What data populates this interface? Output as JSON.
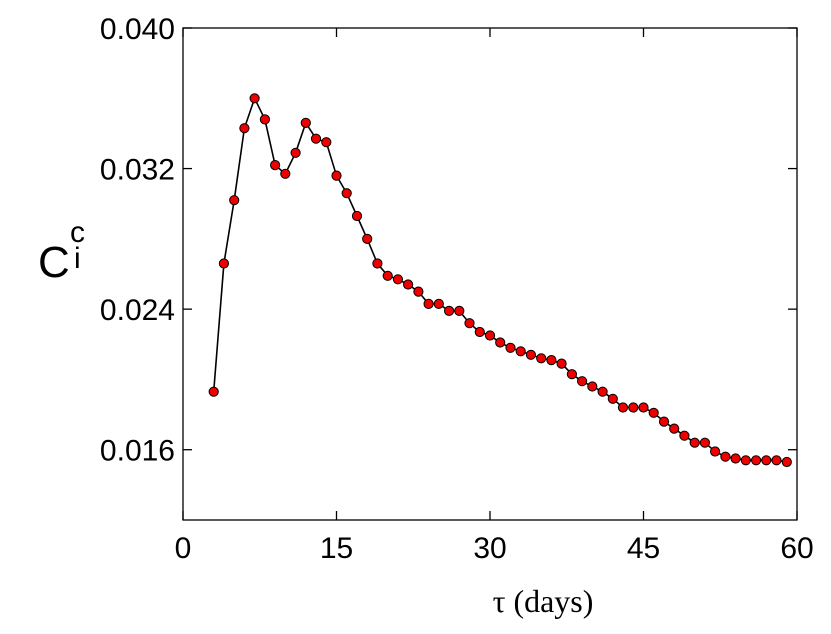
{
  "chart_data": {
    "type": "line",
    "title": "",
    "xlabel": "τ (days)",
    "ylabel": {
      "main": "C",
      "superscript": "c",
      "subscript": "i"
    },
    "xlim": [
      0,
      60
    ],
    "ylim": [
      0.012,
      0.04
    ],
    "xticks": [
      0,
      15,
      30,
      45,
      60
    ],
    "xtick_labels": [
      "0",
      "15",
      "30",
      "45",
      "60"
    ],
    "yticks": [
      0.016,
      0.024,
      0.032,
      0.04
    ],
    "ytick_labels": [
      "0.016",
      "0.024",
      "0.032",
      "0.040"
    ],
    "grid": false,
    "colors": {
      "marker_fill": "#ee0000",
      "marker_edge": "#000000",
      "line": "#000000"
    },
    "series": [
      {
        "x": [
          3,
          4,
          5,
          6,
          7,
          8,
          9,
          10,
          11,
          12,
          13,
          14,
          15,
          16,
          17,
          18,
          19,
          20,
          21,
          22,
          23,
          24,
          25,
          26,
          27,
          28,
          29,
          30,
          31,
          32,
          33,
          34,
          35,
          36,
          37,
          38,
          39,
          40,
          41,
          42,
          43,
          44,
          45,
          46,
          47,
          48,
          49,
          50,
          51,
          52,
          53,
          54,
          55,
          56,
          57,
          58,
          59
        ],
        "y": [
          0.0193,
          0.0266,
          0.0302,
          0.0343,
          0.036,
          0.0348,
          0.0322,
          0.0317,
          0.0329,
          0.0346,
          0.0337,
          0.0335,
          0.0316,
          0.0306,
          0.0293,
          0.028,
          0.0266,
          0.0259,
          0.0257,
          0.0254,
          0.025,
          0.0243,
          0.0243,
          0.0239,
          0.0239,
          0.0232,
          0.0227,
          0.0225,
          0.0221,
          0.0218,
          0.0216,
          0.0214,
          0.0212,
          0.0211,
          0.0209,
          0.0203,
          0.0199,
          0.0196,
          0.0193,
          0.0189,
          0.0184,
          0.0184,
          0.0184,
          0.0181,
          0.0176,
          0.0172,
          0.0168,
          0.0164,
          0.0164,
          0.0159,
          0.0156,
          0.0155,
          0.0154,
          0.0154,
          0.0154,
          0.0154,
          0.0153
        ]
      }
    ]
  }
}
